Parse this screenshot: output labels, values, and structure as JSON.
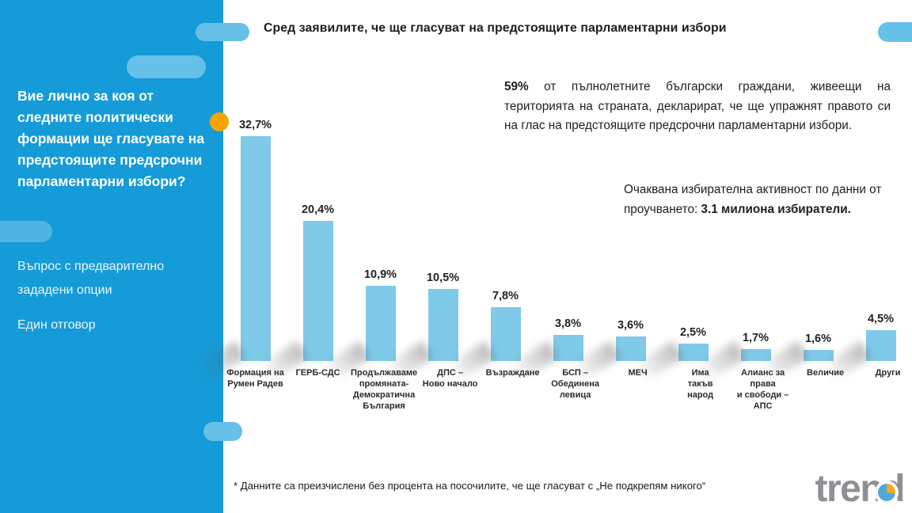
{
  "sidebar": {
    "question": "Вие лично за коя от следните политически формации ще гласувате на предстоящите предсрочни парламентарни избори?",
    "note_method": "Въпрос с предварително зададени опции",
    "note_answers": "Един отговор"
  },
  "header": {
    "title": "Сред заявилите, че ще гласуват на предстоящите парламентарни избори"
  },
  "insight": {
    "lead": "59%",
    "body": " от пълнолетните български граждани, живеещи на територията на страната, декларират, че ще упражнят правото си на глас на предстоящите предсрочни парламентарни избори."
  },
  "turnout": {
    "body": "Очаквана избирателна активност по данни от проучването: ",
    "bold": "3.1 милиона избиратели."
  },
  "footnote": {
    "text": "* Данните са преизчислени без процента на посочилите, че ще гласуват с „Не подкрепям никого“"
  },
  "logo": {
    "text": "trend"
  },
  "colors": {
    "sidebar_bg": "#149BD8",
    "decor_pill": "#66C0E8",
    "bar": "#7FC9E9",
    "highlight_dot": "#F6A500",
    "logo_gray": "#8F9093"
  },
  "chart_data": {
    "type": "bar",
    "title": "Сред заявилите, че ще гласуват на предстоящите парламентарни избори",
    "categories": [
      "Формация на\nРумен Радев",
      "ГЕРБ-СДС",
      "Продължаваме\nпромяната-\nДемократична\nБългария",
      "ДПС –\nНово начало",
      "Възраждане",
      "БСП –\nОбединена\nлевица",
      "МЕЧ",
      "Има\nтакъв\nнарод",
      "Алианс за\nправа\nи свободи –\nАПС",
      "Величие",
      "Други"
    ],
    "values": [
      32.7,
      20.4,
      10.9,
      10.5,
      7.8,
      3.8,
      3.6,
      2.5,
      1.7,
      1.6,
      4.5
    ],
    "value_labels": [
      "32,7%",
      "20,4%",
      "10,9%",
      "10,5%",
      "7,8%",
      "3,8%",
      "3,6%",
      "2,5%",
      "1,7%",
      "1,6%",
      "4,5%"
    ],
    "bar_color": "#7FC9E9",
    "xlabel": "",
    "ylabel": "",
    "ylim": [
      0,
      35
    ],
    "grid": false,
    "legend": false
  }
}
